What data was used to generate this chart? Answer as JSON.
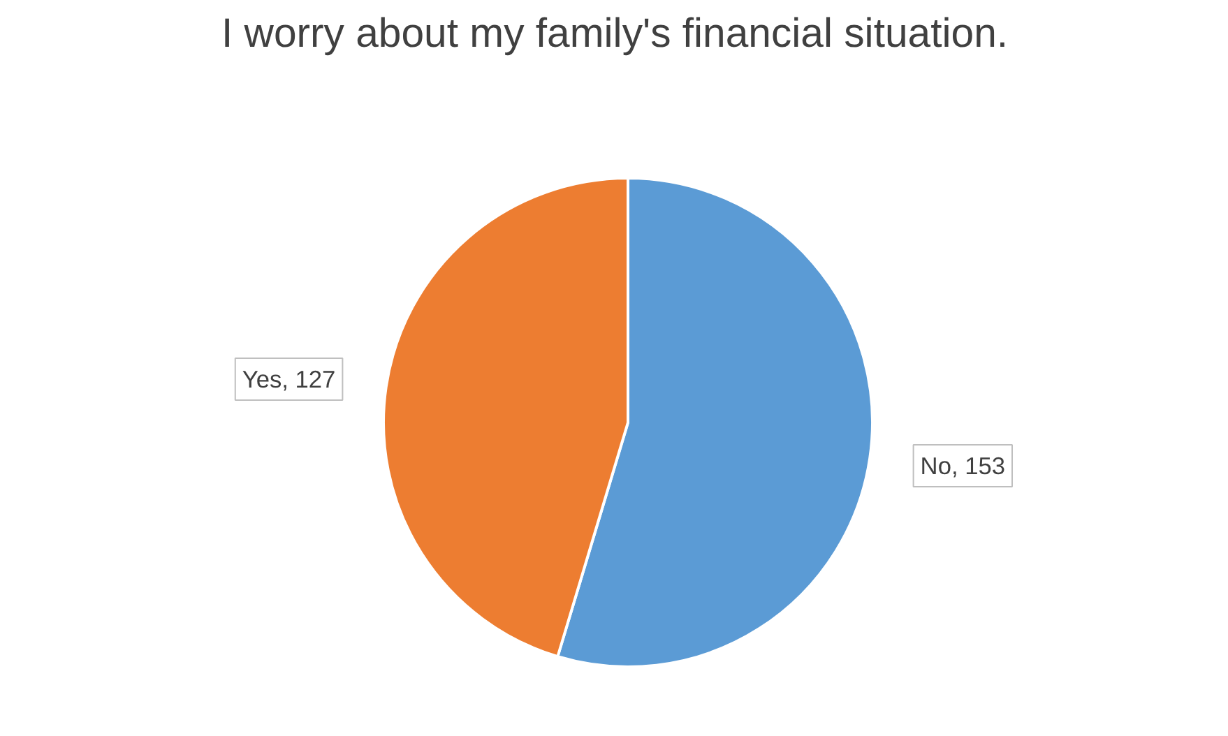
{
  "chart_data": {
    "type": "pie",
    "title": "I worry about my family's financial situation.",
    "categories": [
      "No, 153",
      "Yes, 127"
    ],
    "values": [
      153,
      127
    ],
    "colors": [
      "#5b9bd5",
      "#ed7d31"
    ]
  }
}
